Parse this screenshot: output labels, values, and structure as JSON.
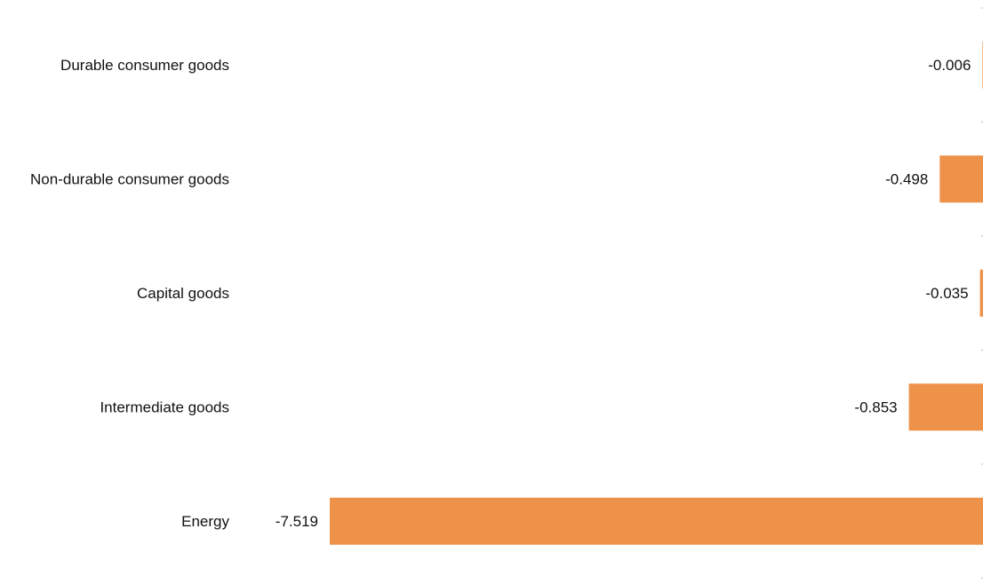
{
  "chart_data": {
    "type": "bar",
    "orientation": "horizontal",
    "categories": [
      "Durable consumer goods",
      "Non-durable consumer goods",
      "Capital goods",
      "Intermediate goods",
      "Energy"
    ],
    "values": [
      -0.006,
      -0.498,
      -0.035,
      -0.853,
      -7.519
    ],
    "value_labels": [
      "-0.006",
      "-0.498",
      "-0.035",
      "-0.853",
      "-7.519"
    ],
    "title": "",
    "xlabel": "",
    "ylabel": "",
    "xlim": [
      -7.519,
      0
    ],
    "grid": false,
    "legend": "none",
    "bar_color": "#EE9149"
  }
}
